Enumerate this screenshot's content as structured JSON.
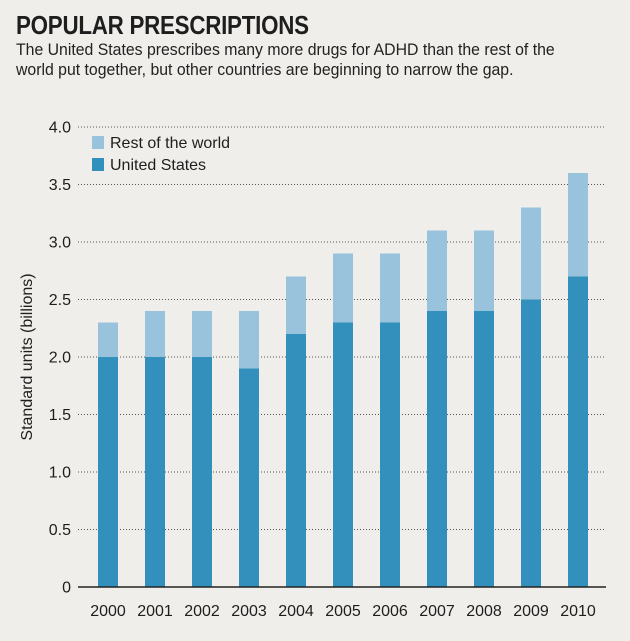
{
  "chart_data": {
    "type": "bar",
    "stacked": true,
    "title": "POPULAR PRESCRIPTIONS",
    "subtitle": "The United States prescribes many more drugs for ADHD than the rest of the world put together, but other countries are beginning to narrow the gap.",
    "ylabel": "Standard units (billions)",
    "xlabel": "",
    "ylim": [
      0,
      4.0
    ],
    "yticks": [
      0,
      0.5,
      1.0,
      1.5,
      2.0,
      2.5,
      3.0,
      3.5,
      4.0
    ],
    "ytick_labels": [
      "0",
      "0.5",
      "1.0",
      "1.5",
      "2.0",
      "2.5",
      "3.0",
      "3.5",
      "4.0"
    ],
    "grid": true,
    "legend_position": "top-left",
    "categories": [
      "2000",
      "2001",
      "2002",
      "2003",
      "2004",
      "2005",
      "2006",
      "2007",
      "2008",
      "2009",
      "2010"
    ],
    "series": [
      {
        "name": "United States",
        "color": "#3390bd",
        "values": [
          2.0,
          2.0,
          2.0,
          1.9,
          2.2,
          2.3,
          2.3,
          2.4,
          2.4,
          2.5,
          2.7
        ]
      },
      {
        "name": "Rest of the world",
        "color": "#99c3dc",
        "values": [
          0.3,
          0.4,
          0.4,
          0.5,
          0.5,
          0.6,
          0.6,
          0.7,
          0.7,
          0.8,
          0.9
        ]
      }
    ],
    "legend_order": [
      "Rest of the world",
      "United States"
    ]
  }
}
